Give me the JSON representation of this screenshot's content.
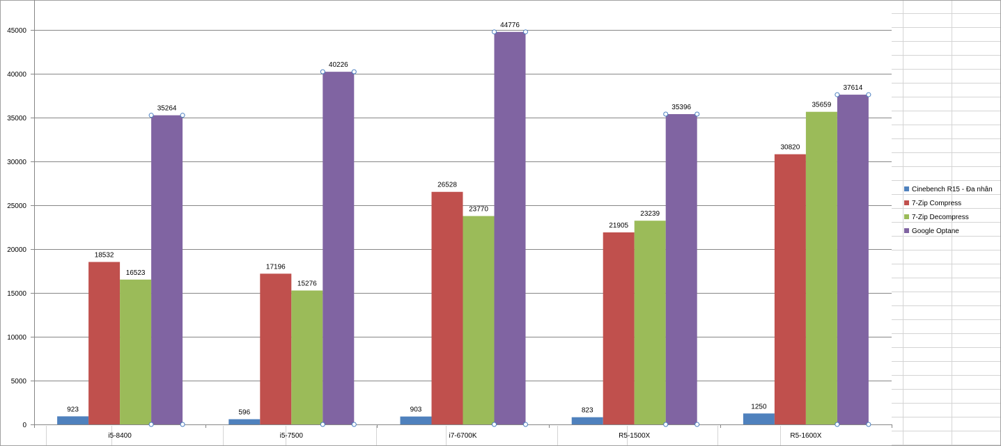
{
  "chart_data": {
    "type": "bar",
    "title": "",
    "xlabel": "",
    "ylabel": "",
    "categories": [
      "i5-8400",
      "i5-7500",
      "i7-6700K",
      "R5-1500X",
      "R5-1600X"
    ],
    "series": [
      {
        "name": "Cinebench R15 - Đa nhân",
        "color": "#4f81bd",
        "values": [
          923,
          596,
          903,
          823,
          1250
        ]
      },
      {
        "name": "7-Zip Compress",
        "color": "#c0504d",
        "values": [
          18532,
          17196,
          26528,
          21905,
          30820
        ]
      },
      {
        "name": "7-Zip Decompress",
        "color": "#9bbb59",
        "values": [
          16523,
          15276,
          23770,
          23239,
          35659
        ]
      },
      {
        "name": "Google Optane",
        "color": "#8064a2",
        "values": [
          35264,
          40226,
          44776,
          35396,
          37614
        ]
      }
    ],
    "ylim": [
      0,
      45000
    ],
    "yticks": [
      0,
      5000,
      10000,
      15000,
      20000,
      25000,
      30000,
      35000,
      40000,
      45000
    ],
    "grid": true,
    "legend_position": "right",
    "data_labels": true,
    "selected_series": "Google Optane"
  }
}
